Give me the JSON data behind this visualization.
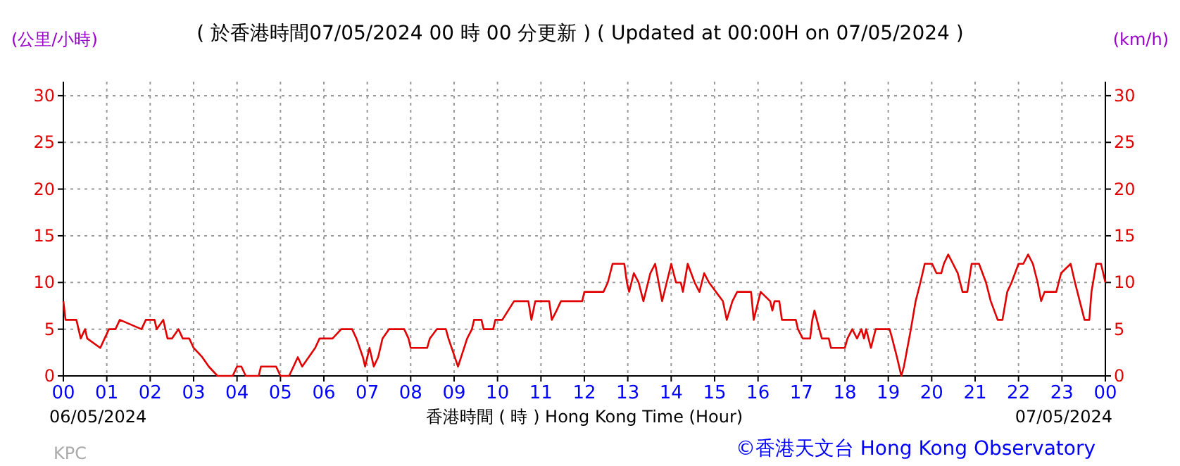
{
  "chart_data": {
    "type": "line",
    "title": "( 於香港時間07/05/2024 00 時 00 分更新 ) ( Updated at 00:00H on 07/05/2024 )",
    "ylabel": "(公里/小時)",
    "y2label": "(km/h)",
    "xlabel": "香港時間 ( 時 ) Hong Kong Time (Hour)",
    "annotations": [
      "06/05/2024",
      "07/05/2024",
      "KPC",
      "©香港天文台 Hong Kong Observatory"
    ],
    "series": [
      {
        "color": "#e00000",
        "x": [
          0,
          0.05,
          0.3,
          0.4,
          0.5,
          0.55,
          0.85,
          0.95,
          1.05,
          1.2,
          1.3,
          1.8,
          1.9,
          2.1,
          2.15,
          2.3,
          2.4,
          2.5,
          2.65,
          2.75,
          2.9,
          3.0,
          3.2,
          3.35,
          3.55,
          3.9,
          4.0,
          4.1,
          4.2,
          4.5,
          4.55,
          4.9,
          5.0,
          5.2,
          5.3,
          5.4,
          5.5,
          5.8,
          5.9,
          6.2,
          6.4,
          6.65,
          6.75,
          6.9,
          6.95,
          7.05,
          7.15,
          7.25,
          7.35,
          7.5,
          7.85,
          7.95,
          8.0,
          8.38,
          8.44,
          8.6,
          8.81,
          8.87,
          9.09,
          9.3,
          9.41,
          9.46,
          9.63,
          9.68,
          9.9,
          9.95,
          10.06,
          10.11,
          10.38,
          10.71,
          10.78,
          10.87,
          11.19,
          11.25,
          11.36,
          11.46,
          11.95,
          12.0,
          12.44,
          12.54,
          12.65,
          12.92,
          12.98,
          13.03,
          13.14,
          13.25,
          13.36,
          13.52,
          13.63,
          13.79,
          13.95,
          14.0,
          14.11,
          14.22,
          14.27,
          14.38,
          14.54,
          14.65,
          14.76,
          14.87,
          15.03,
          15.19,
          15.28,
          15.41,
          15.52,
          15.84,
          15.9,
          16.06,
          16.28,
          16.33,
          16.38,
          16.49,
          16.55,
          16.87,
          16.92,
          17.03,
          17.2,
          17.25,
          17.3,
          17.41,
          17.47,
          17.63,
          17.68,
          18.0,
          18.06,
          18.17,
          18.28,
          18.38,
          18.44,
          18.49,
          18.6,
          18.71,
          19.03,
          19.09,
          19.2,
          19.3,
          19.36,
          19.52,
          19.63,
          19.74,
          19.84,
          20.01,
          20.11,
          20.22,
          20.28,
          20.38,
          20.49,
          20.6,
          20.71,
          20.82,
          20.92,
          21.09,
          21.25,
          21.36,
          21.52,
          21.63,
          21.74,
          21.84,
          22.0,
          22.11,
          22.22,
          22.33,
          22.44,
          22.52,
          22.6,
          22.87,
          22.98,
          23.2,
          23.3,
          23.41,
          23.52,
          23.63,
          23.68,
          23.79,
          23.9,
          24.0
        ],
        "values": [
          8,
          6,
          6,
          4,
          5,
          4,
          3,
          4,
          5,
          5,
          6,
          5,
          6,
          6,
          5,
          6,
          4,
          4,
          5,
          4,
          4,
          3,
          2,
          1,
          0,
          0,
          1,
          1,
          0,
          0,
          1,
          1,
          0,
          0,
          1,
          2,
          1,
          3,
          4,
          4,
          5,
          5,
          4,
          2,
          1,
          3,
          1,
          2,
          4,
          5,
          5,
          4,
          3,
          3,
          4,
          5,
          5,
          4,
          1,
          4,
          5,
          6,
          6,
          5,
          5,
          6,
          6,
          6,
          8,
          8,
          6,
          8,
          8,
          6,
          7,
          8,
          8,
          9,
          9,
          10,
          12,
          12,
          10,
          9,
          11,
          10,
          8,
          11,
          12,
          8,
          11,
          12,
          10,
          10,
          9,
          12,
          10,
          9,
          11,
          10,
          9,
          8,
          6,
          8,
          9,
          9,
          6,
          9,
          8,
          7,
          8,
          8,
          6,
          6,
          5,
          4,
          4,
          6,
          7,
          5,
          4,
          4,
          3,
          3,
          4,
          5,
          4,
          5,
          4,
          5,
          3,
          5,
          5,
          4,
          2,
          0,
          1,
          5,
          8,
          10,
          12,
          12,
          11,
          11,
          12,
          13,
          12,
          11,
          9,
          9,
          12,
          12,
          10,
          8,
          6,
          6,
          9,
          10,
          12,
          12,
          13,
          12,
          10,
          8,
          9,
          9,
          11,
          12,
          10,
          8,
          6,
          6,
          9,
          12,
          12,
          10
        ]
      }
    ],
    "xlim": [
      0,
      24
    ],
    "xticks": [
      {
        "value": 0,
        "label": "00"
      },
      {
        "value": 1,
        "label": "01"
      },
      {
        "value": 2,
        "label": "02"
      },
      {
        "value": 3,
        "label": "03"
      },
      {
        "value": 4,
        "label": "04"
      },
      {
        "value": 5,
        "label": "05"
      },
      {
        "value": 6,
        "label": "06"
      },
      {
        "value": 7,
        "label": "07"
      },
      {
        "value": 8,
        "label": "08"
      },
      {
        "value": 9,
        "label": "09"
      },
      {
        "value": 10,
        "label": "10"
      },
      {
        "value": 11,
        "label": "11"
      },
      {
        "value": 12,
        "label": "12"
      },
      {
        "value": 13,
        "label": "13"
      },
      {
        "value": 14,
        "label": "14"
      },
      {
        "value": 15,
        "label": "15"
      },
      {
        "value": 16,
        "label": "16"
      },
      {
        "value": 17,
        "label": "17"
      },
      {
        "value": 18,
        "label": "18"
      },
      {
        "value": 19,
        "label": "19"
      },
      {
        "value": 20,
        "label": "20"
      },
      {
        "value": 21,
        "label": "21"
      },
      {
        "value": 22,
        "label": "22"
      },
      {
        "value": 23,
        "label": "23"
      },
      {
        "value": 24,
        "label": "00"
      }
    ],
    "ylim": [
      0,
      31.5
    ],
    "yticks": [
      0,
      5,
      10,
      15,
      20,
      25,
      30
    ],
    "y2lim": [
      0,
      31.5
    ],
    "y2ticks": [
      0,
      5,
      10,
      15,
      20,
      25,
      30
    ],
    "grid": true,
    "marker": "none",
    "line_style": "solid"
  }
}
